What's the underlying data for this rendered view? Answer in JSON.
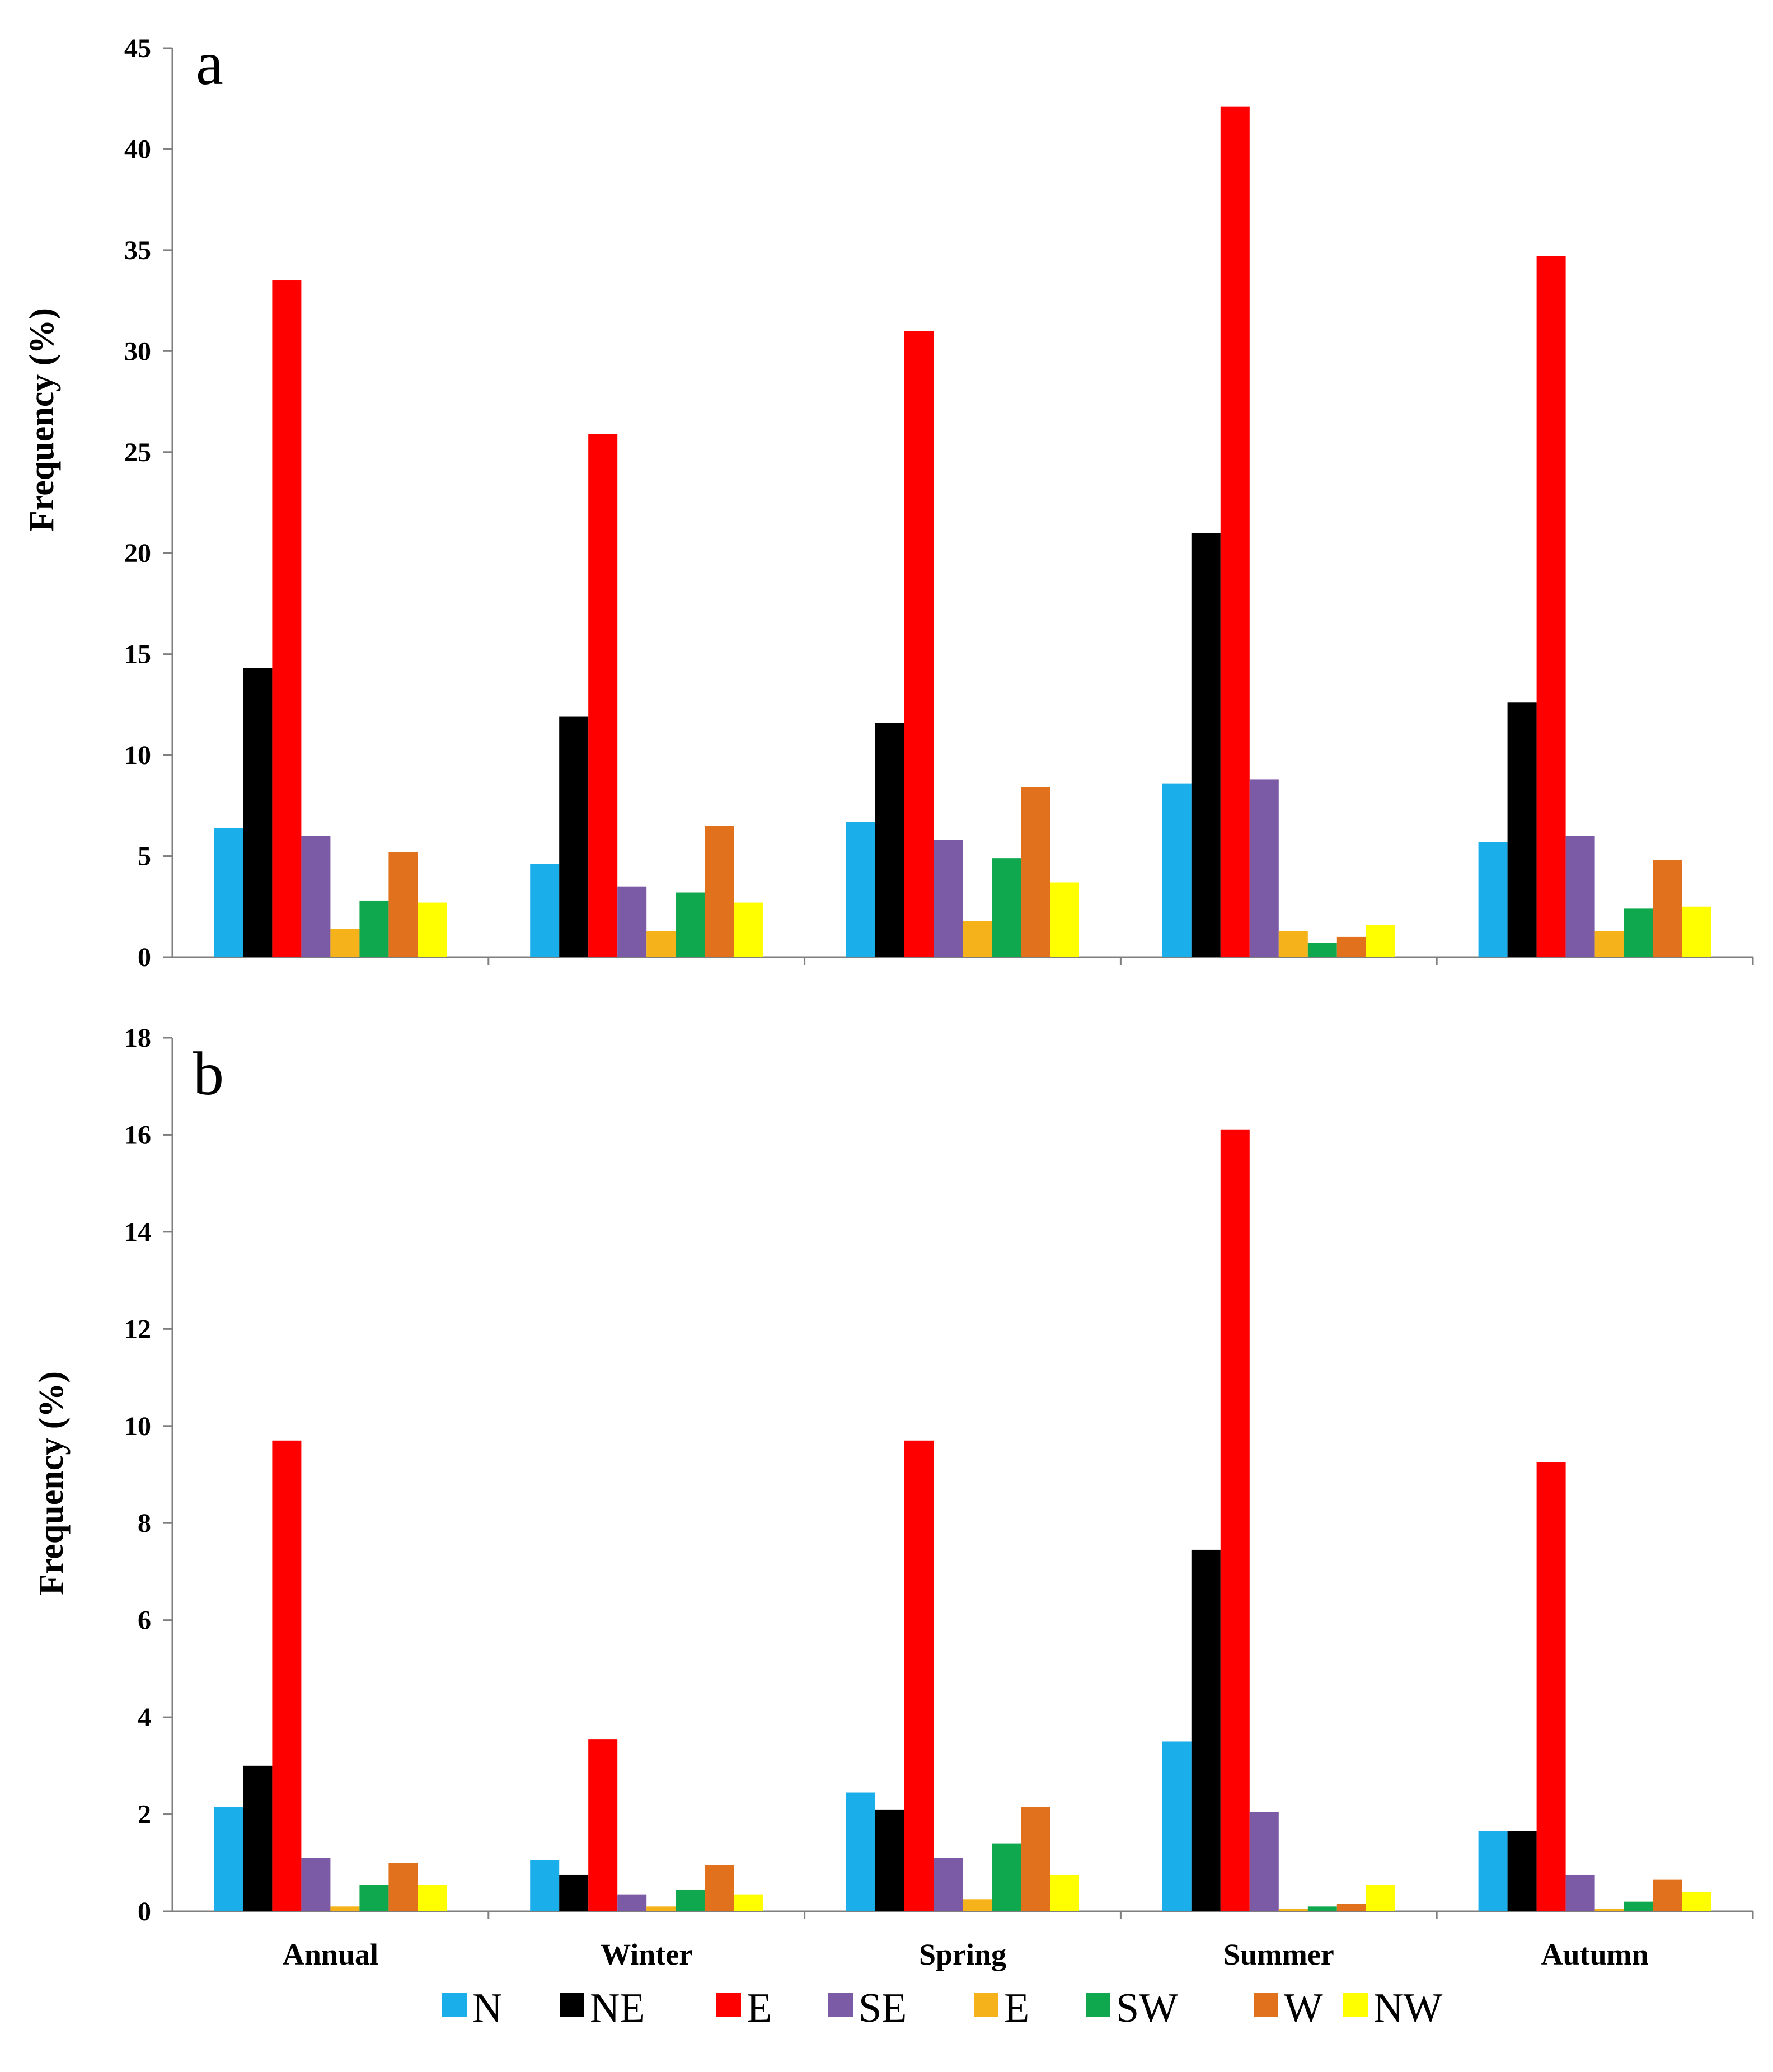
{
  "chart_data": [
    {
      "type": "bar",
      "panel_label": "a",
      "ylabel": "Frequency (%)",
      "ylim": [
        0,
        45
      ],
      "yticks": [
        "0",
        "5",
        "10",
        "15",
        "20",
        "25",
        "30",
        "35",
        "40",
        "45"
      ],
      "categories": [
        "Annual",
        "Winter",
        "Spring",
        "Summer",
        "Autumn"
      ],
      "series": [
        {
          "name": "N",
          "color": "#1aaeea",
          "values": [
            6.4,
            4.6,
            6.7,
            8.6,
            5.7
          ]
        },
        {
          "name": "NE",
          "color": "#000000",
          "values": [
            14.3,
            11.9,
            11.6,
            21.0,
            12.6
          ]
        },
        {
          "name": "E",
          "color": "#ff0000",
          "values": [
            33.5,
            25.9,
            31.0,
            42.1,
            34.7
          ]
        },
        {
          "name": "SE",
          "color": "#7b5aa6",
          "values": [
            6.0,
            3.5,
            5.8,
            8.8,
            6.0
          ]
        },
        {
          "name": "E",
          "color": "#f5b21a",
          "values": [
            1.4,
            1.3,
            1.8,
            1.3,
            1.3
          ]
        },
        {
          "name": "SW",
          "color": "#10a84f",
          "values": [
            2.8,
            3.2,
            4.9,
            0.7,
            2.4
          ]
        },
        {
          "name": "W",
          "color": "#e2711d",
          "values": [
            5.2,
            6.5,
            8.4,
            1.0,
            4.8
          ]
        },
        {
          "name": "NW",
          "color": "#ffff00",
          "values": [
            2.7,
            2.7,
            3.7,
            1.6,
            2.5
          ]
        }
      ]
    },
    {
      "type": "bar",
      "panel_label": "b",
      "ylabel": "Frequency (%)",
      "ylim": [
        0,
        18
      ],
      "yticks": [
        "0",
        "2",
        "4",
        "6",
        "8",
        "10",
        "12",
        "14",
        "16",
        "18"
      ],
      "categories": [
        "Annual",
        "Winter",
        "Spring",
        "Summer",
        "Autumn"
      ],
      "series": [
        {
          "name": "N",
          "color": "#1aaeea",
          "values": [
            2.15,
            1.05,
            2.45,
            3.5,
            1.65
          ]
        },
        {
          "name": "NE",
          "color": "#000000",
          "values": [
            3.0,
            0.75,
            2.1,
            7.45,
            1.65
          ]
        },
        {
          "name": "E",
          "color": "#ff0000",
          "values": [
            9.7,
            3.55,
            9.7,
            16.1,
            9.25
          ]
        },
        {
          "name": "SE",
          "color": "#7b5aa6",
          "values": [
            1.1,
            0.35,
            1.1,
            2.05,
            0.75
          ]
        },
        {
          "name": "E",
          "color": "#f5b21a",
          "values": [
            0.1,
            0.1,
            0.25,
            0.05,
            0.05
          ]
        },
        {
          "name": "SW",
          "color": "#10a84f",
          "values": [
            0.55,
            0.45,
            1.4,
            0.1,
            0.2
          ]
        },
        {
          "name": "W",
          "color": "#e2711d",
          "values": [
            1.0,
            0.95,
            2.15,
            0.15,
            0.65
          ]
        },
        {
          "name": "NW",
          "color": "#ffff00",
          "values": [
            0.55,
            0.35,
            0.75,
            0.55,
            0.4
          ]
        }
      ]
    }
  ]
}
